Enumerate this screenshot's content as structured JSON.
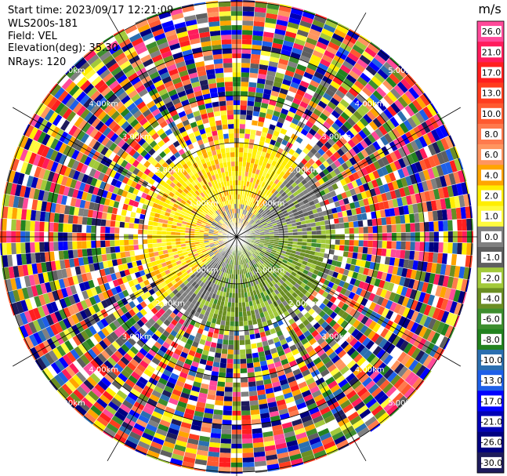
{
  "header": {
    "start_time": "Start time: 2023/09/17 12:21:09",
    "instrument": "WLS200s-181",
    "field": "Field: VEL",
    "elevation": "Elevation(deg): 35.30",
    "nrays": "NRays: 120"
  },
  "chart_data": {
    "type": "heatmap",
    "projection": "polar",
    "title": "",
    "field": "VEL",
    "n_rays": 120,
    "range_rings_km": [
      1.0,
      2.0,
      3.0,
      4.0,
      5.0
    ],
    "range_ring_labels": [
      "1.00km",
      "2.00km",
      "3.00km",
      "4.00km",
      "5.00km"
    ],
    "max_range_km": 5.5,
    "colorbar": {
      "unit": "m/s",
      "ticks": [
        "26.0",
        "21.0",
        "17.0",
        "13.0",
        "10.0",
        "8.0",
        "6.0",
        "4.0",
        "2.0",
        "1.0",
        "0.0",
        "-1.0",
        "-2.0",
        "-4.0",
        "-6.0",
        "-8.0",
        "-10.0",
        "-13.0",
        "-17.0",
        "-21.0",
        "-26.0",
        "-30.0"
      ],
      "colors": [
        "#ff4a9a",
        "#ff1c5c",
        "#ff1f1f",
        "#ff3d1f",
        "#ff5a30",
        "#ff7a4d",
        "#ff955f",
        "#ffa500",
        "#ffee00",
        "#fffb3d",
        "#808080",
        "#5f5f5f",
        "#a2c93a",
        "#6b8e23",
        "#3e8e2e",
        "#22821f",
        "#2b6fb0",
        "#1e5fe8",
        "#0000ff",
        "#0000b5",
        "#000080",
        "#1d1b5c"
      ]
    },
    "field_description": {
      "inner_core_km": 2.0,
      "north_west_sector": "positive velocities 1–6 m/s (yellow/orange)",
      "south_east_sector": "negative velocities -1 to -6 m/s (green/grey)",
      "outer_ranges": "noisy velocities spanning full scale"
    }
  }
}
